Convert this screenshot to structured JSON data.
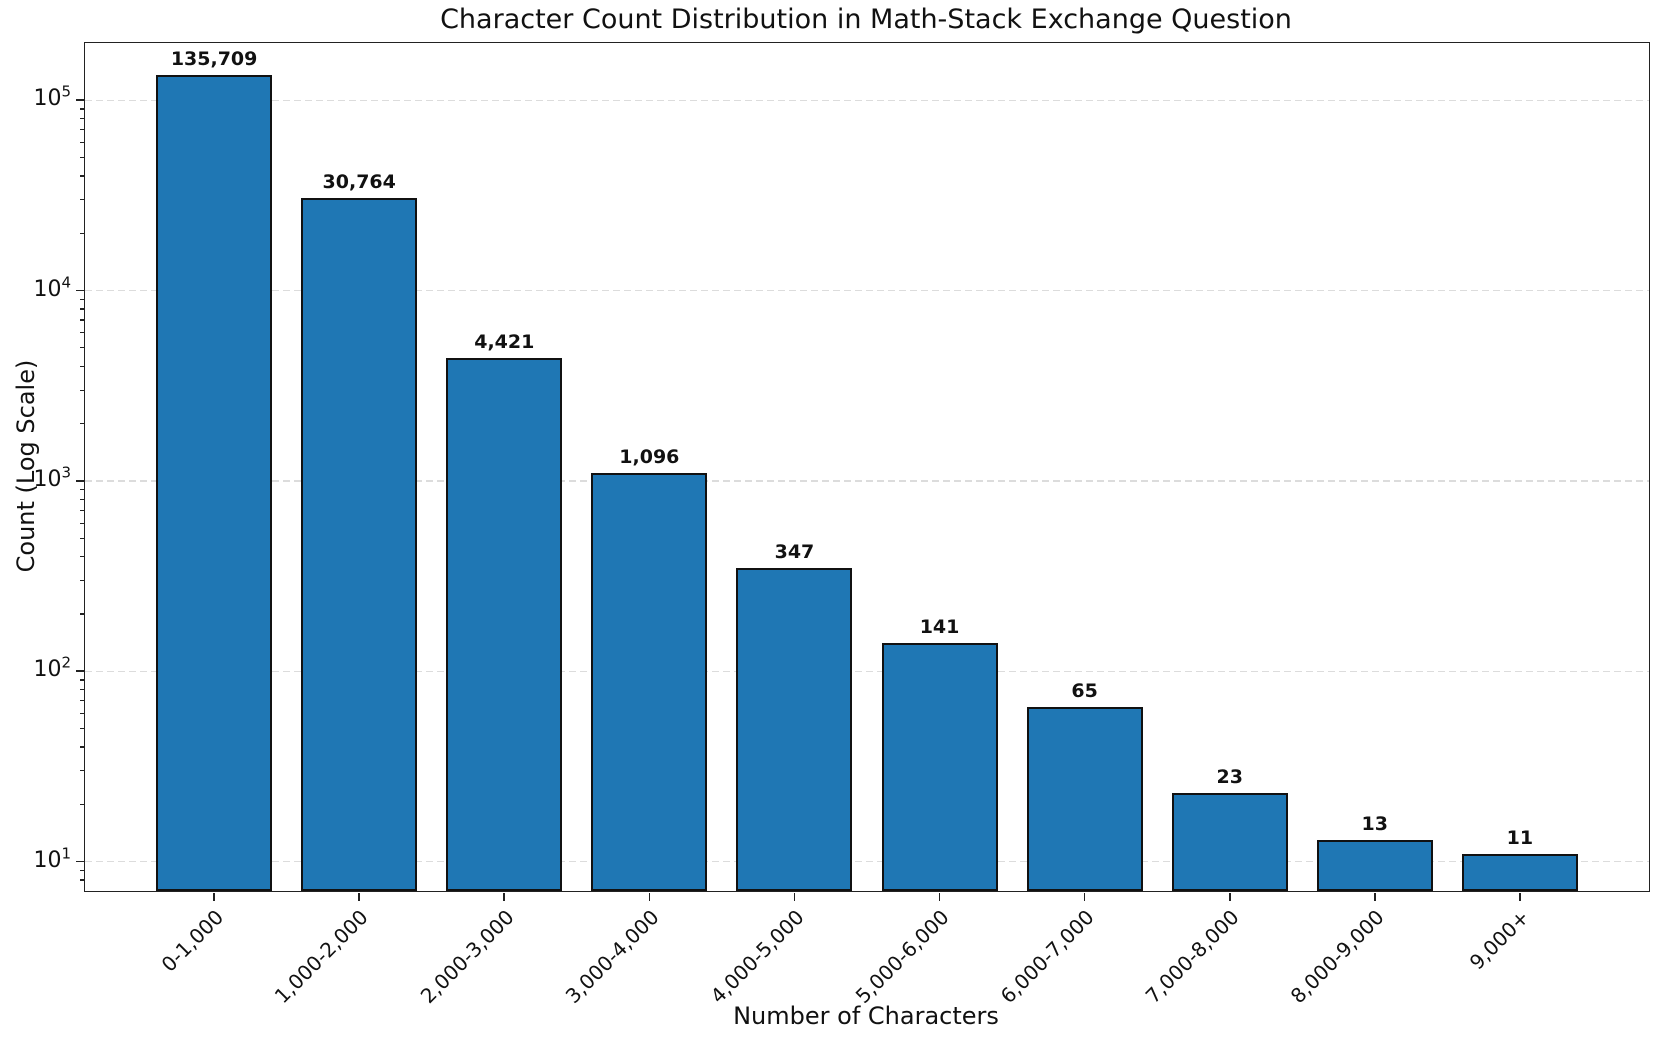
{
  "chart_data": {
    "type": "bar",
    "title": "Character Count Distribution in Math-Stack Exchange Question",
    "xlabel": "Number of Characters",
    "ylabel": "Count (Log Scale)",
    "categories": [
      "0-1,000",
      "1,000-2,000",
      "2,000-3,000",
      "3,000-4,000",
      "4,000-5,000",
      "5,000-6,000",
      "6,000-7,000",
      "7,000-8,000",
      "8,000-9,000",
      "9,000+"
    ],
    "values": [
      135709,
      30764,
      4421,
      1096,
      347,
      141,
      65,
      23,
      13,
      11
    ],
    "value_labels": [
      "135,709",
      "30,764",
      "4,421",
      "1,096",
      "347",
      "141",
      "65",
      "23",
      "13",
      "11"
    ],
    "yscale": "log",
    "ylim": [
      7,
      200000
    ],
    "ytick_exponents": [
      1,
      2,
      3,
      4,
      5
    ],
    "grid": "horizontal-dashed-major-only",
    "legend": "none",
    "bar_width_frac": 0.8,
    "bar_color": "#1f77b4",
    "bar_edge_color": "#111111",
    "grid_color": "#dcdcdc",
    "axis_color": "#222222",
    "text_color": "#111111",
    "background": "#ffffff"
  }
}
